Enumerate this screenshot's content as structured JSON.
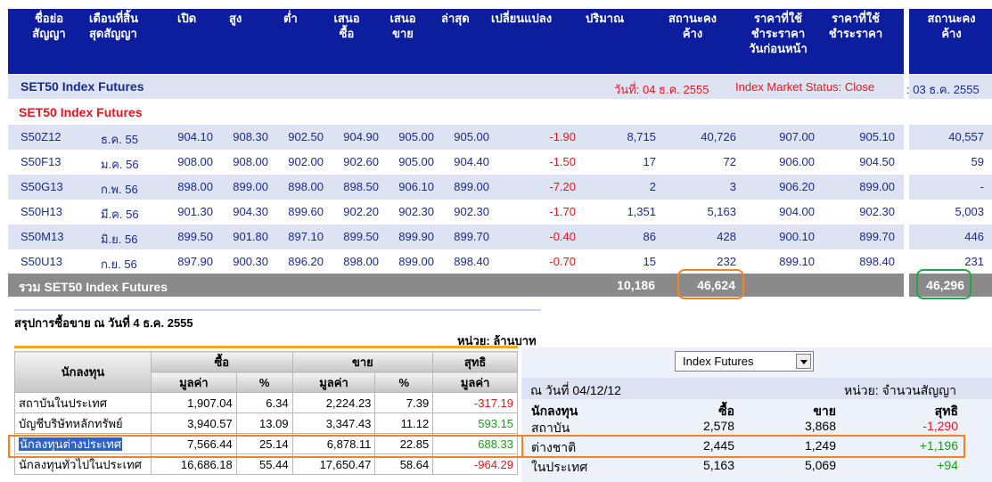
{
  "top_header": {
    "columns": [
      "ชื่อย่อ\nสัญญา",
      "เดือนที่สิ้น\nสุดสัญญา",
      "เปิด",
      "สูง",
      "ต่ำ",
      "เสนอ\nซื้อ",
      "เสนอ\nขาย",
      "ล่าสุด",
      "เปลี่ยนแปลง",
      "ปริมาณ",
      "สถานะคง\nค้าง",
      "ราคาที่ใช้\nชำระราคา\nวันก่อนหน้า",
      "ราคาที่ใช้\nชำระราคา"
    ],
    "side_column": "สถานะคง\nค้าง"
  },
  "market_band": {
    "title": "SET50 Index Futures",
    "date_label": "วันที่: 04 ธ.ค. 2555",
    "status_label": "Index Market Status: Close",
    "side_date": ": 03 ธ.ค. 2555"
  },
  "group_title": "SET50 Index Futures",
  "rows": [
    {
      "symbol": "S50Z12",
      "month": "ธ.ค. 55",
      "open": "904.10",
      "high": "908.30",
      "low": "902.50",
      "bid": "904.90",
      "offer": "905.00",
      "last": "905.00",
      "change": "-1.90",
      "volume": "8,715",
      "oi": "40,726",
      "prev_settle": "907.00",
      "settle": "905.10",
      "side_oi": "40,557"
    },
    {
      "symbol": "S50F13",
      "month": "ม.ค. 56",
      "open": "908.00",
      "high": "908.00",
      "low": "902.00",
      "bid": "902.60",
      "offer": "905.00",
      "last": "904.40",
      "change": "-1.50",
      "volume": "17",
      "oi": "72",
      "prev_settle": "906.00",
      "settle": "904.50",
      "side_oi": "59"
    },
    {
      "symbol": "S50G13",
      "month": "ก.พ. 56",
      "open": "898.00",
      "high": "899.00",
      "low": "898.00",
      "bid": "898.50",
      "offer": "906.10",
      "last": "899.00",
      "change": "-7.20",
      "volume": "2",
      "oi": "3",
      "prev_settle": "906.20",
      "settle": "899.00",
      "side_oi": "-"
    },
    {
      "symbol": "S50H13",
      "month": "มี.ค. 56",
      "open": "901.30",
      "high": "904.30",
      "low": "899.60",
      "bid": "902.20",
      "offer": "902.30",
      "last": "902.30",
      "change": "-1.70",
      "volume": "1,351",
      "oi": "5,163",
      "prev_settle": "904.00",
      "settle": "902.30",
      "side_oi": "5,003"
    },
    {
      "symbol": "S50M13",
      "month": "มิ.ย. 56",
      "open": "899.50",
      "high": "901.80",
      "low": "897.10",
      "bid": "899.50",
      "offer": "899.90",
      "last": "899.70",
      "change": "-0.40",
      "volume": "86",
      "oi": "428",
      "prev_settle": "900.10",
      "settle": "899.70",
      "side_oi": "446"
    },
    {
      "symbol": "S50U13",
      "month": "ก.ย. 56",
      "open": "897.90",
      "high": "900.30",
      "low": "896.20",
      "bid": "898.00",
      "offer": "899.00",
      "last": "898.40",
      "change": "-0.70",
      "volume": "15",
      "oi": "232",
      "prev_settle": "899.10",
      "settle": "898.40",
      "side_oi": "231"
    }
  ],
  "summary": {
    "label": "รวม SET50 Index Futures",
    "volume": "10,186",
    "oi": "46,624",
    "side_oi": "46,296"
  },
  "trading_summary": {
    "title": "สรุปการซื้อขาย ณ วันที่ 4 ธ.ค. 2555",
    "unit": "หน่วย: ล้านบาท",
    "headers": {
      "investor": "นักลงทุน",
      "buy": "ซื้อ",
      "sell": "ขาย",
      "net": "สุทธิ",
      "value": "มูลค่า",
      "pct": "%"
    },
    "rows": [
      {
        "investor": "สถาบันในประเทศ",
        "buy_value": "1,907.04",
        "buy_pct": "6.34",
        "sell_value": "2,224.23",
        "sell_pct": "7.39",
        "net": "-317.19",
        "net_color": "#e8141e"
      },
      {
        "investor": "บัญชีบริษัทหลักทรัพย์",
        "buy_value": "3,940.57",
        "buy_pct": "13.09",
        "sell_value": "3,347.43",
        "sell_pct": "11.12",
        "net": "593.15",
        "net_color": "#1a9e1a"
      },
      {
        "investor": "นักลงทุนต่างประเทศ",
        "buy_value": "7,566.44",
        "buy_pct": "25.14",
        "sell_value": "6,878.11",
        "sell_pct": "22.85",
        "net": "688.33",
        "net_color": "#1a9e1a"
      },
      {
        "investor": "นักลงทุนทั่วไปในประเทศ",
        "buy_value": "16,686.18",
        "buy_pct": "55.44",
        "sell_value": "17,650.47",
        "sell_pct": "58.64",
        "net": "-964.29",
        "net_color": "#e8141e"
      }
    ]
  },
  "contract_panel": {
    "select_value": "Index Futures",
    "date_label": "ณ วันที่ 04/12/12",
    "unit": "หน่วย: จำนวนสัญญา",
    "headers": {
      "investor": "นักลงทุน",
      "buy": "ซื้อ",
      "sell": "ขาย",
      "net": "สุทธิ"
    },
    "rows": [
      {
        "investor": "สถาบัน",
        "buy": "2,578",
        "sell": "3,868",
        "net": "-1,290",
        "net_color": "#e8141e"
      },
      {
        "investor": "ต่างชาติ",
        "buy": "2,445",
        "sell": "1,249",
        "net": "+1,196",
        "net_color": "#1a9e1a"
      },
      {
        "investor": "ในประเทศ",
        "buy": "5,163",
        "sell": "5,069",
        "net": "+94",
        "net_color": "#1a9e1a"
      }
    ]
  },
  "colors": {
    "header_blue": "#0c1d9e",
    "row_alt": "#dde3f2",
    "negative": "#e8141e",
    "positive": "#1a9e1a",
    "highlight_orange": "#f58220",
    "highlight_green": "#1fa84a"
  }
}
